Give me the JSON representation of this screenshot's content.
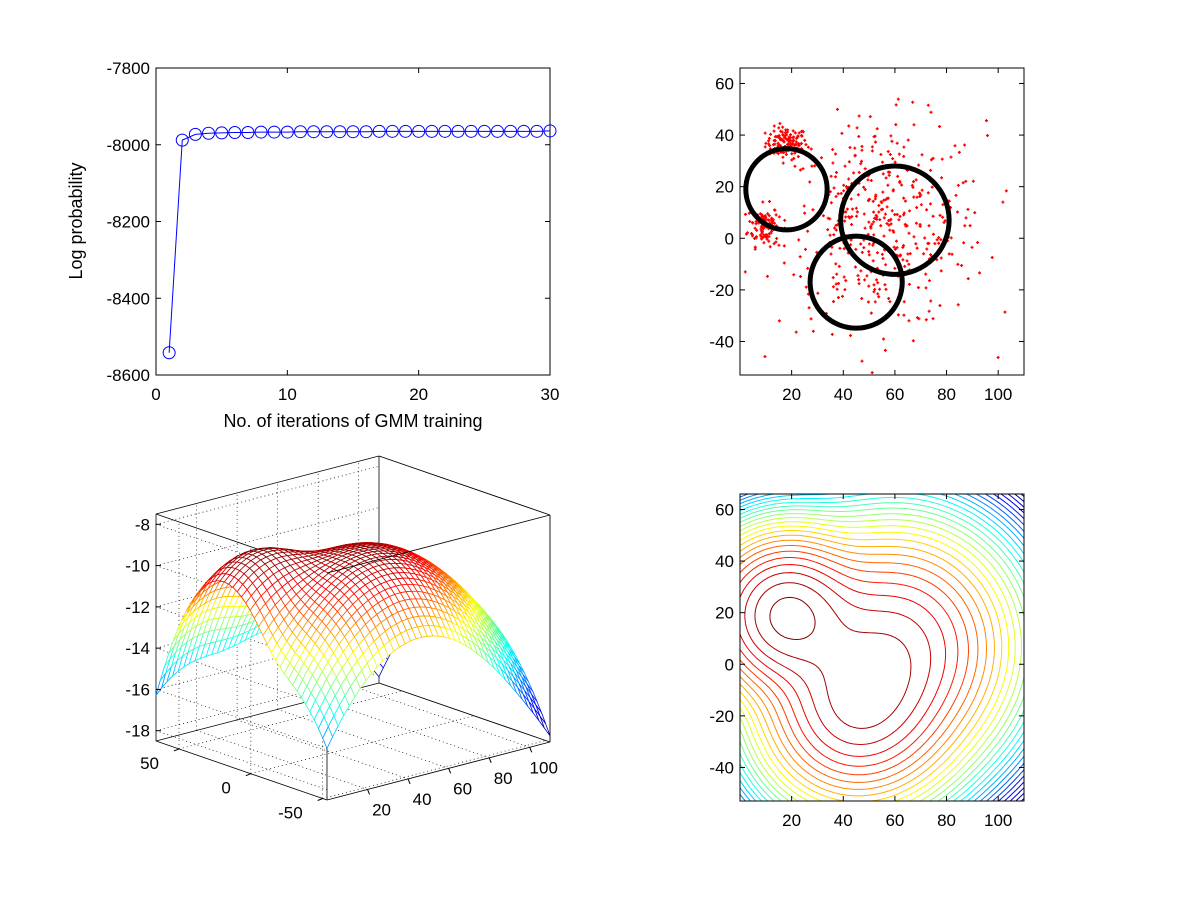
{
  "chart_data": [
    {
      "type": "line",
      "xlabel": "No. of iterations of GMM training",
      "ylabel": "Log probability",
      "xlim": [
        0,
        30
      ],
      "ylim": [
        -8600,
        -7800
      ],
      "xticks": [
        0,
        10,
        20,
        30
      ],
      "yticks": [
        -8600,
        -8400,
        -8200,
        -8000,
        -7800
      ],
      "marker": "circle-open",
      "color": "#0000ff",
      "x": [
        1,
        2,
        3,
        4,
        5,
        6,
        7,
        8,
        9,
        10,
        11,
        12,
        13,
        14,
        15,
        16,
        17,
        18,
        19,
        20,
        21,
        22,
        23,
        24,
        25,
        26,
        27,
        28,
        29,
        30
      ],
      "y": [
        -8542,
        -7988,
        -7973,
        -7970,
        -7969,
        -7968,
        -7968,
        -7967,
        -7967,
        -7967,
        -7966,
        -7966,
        -7966,
        -7966,
        -7966,
        -7966,
        -7965,
        -7965,
        -7965,
        -7965,
        -7965,
        -7965,
        -7965,
        -7965,
        -7965,
        -7965,
        -7965,
        -7965,
        -7965,
        -7964
      ]
    },
    {
      "type": "scatter",
      "xlim": [
        0,
        110
      ],
      "ylim": [
        -53,
        66
      ],
      "xticks": [
        20,
        40,
        60,
        80,
        100
      ],
      "yticks": [
        -40,
        -20,
        0,
        20,
        40,
        60
      ],
      "point_color": "#ff0000",
      "circle_color": "#000000",
      "clusters": [
        {
          "center": [
            18,
            37
          ],
          "spread": [
            4,
            3
          ],
          "count": 120
        },
        {
          "center": [
            9,
            5
          ],
          "spread": [
            3,
            4
          ],
          "count": 110
        },
        {
          "center": [
            55,
            5
          ],
          "spread": [
            20,
            20
          ],
          "count": 450
        }
      ],
      "circles": [
        {
          "center": [
            18,
            19
          ],
          "radius": 15
        },
        {
          "center": [
            60,
            7
          ],
          "radius": 20
        },
        {
          "center": [
            45,
            -17
          ],
          "radius": 17
        }
      ]
    },
    {
      "type": "surface",
      "colormap": "jet",
      "xticks": [
        20,
        40,
        60,
        80,
        100
      ],
      "yticks": [
        -50,
        0,
        50
      ],
      "zticks": [
        -8,
        -10,
        -12,
        -14,
        -16,
        -18
      ],
      "zlim": [
        -18.5,
        -7.5
      ],
      "grid": true
    },
    {
      "type": "contour",
      "colormap": "jet",
      "xlim": [
        0,
        110
      ],
      "ylim": [
        -53,
        66
      ],
      "xticks": [
        20,
        40,
        60,
        80,
        100
      ],
      "yticks": [
        -40,
        -20,
        0,
        20,
        40,
        60
      ],
      "levels": 28
    }
  ]
}
